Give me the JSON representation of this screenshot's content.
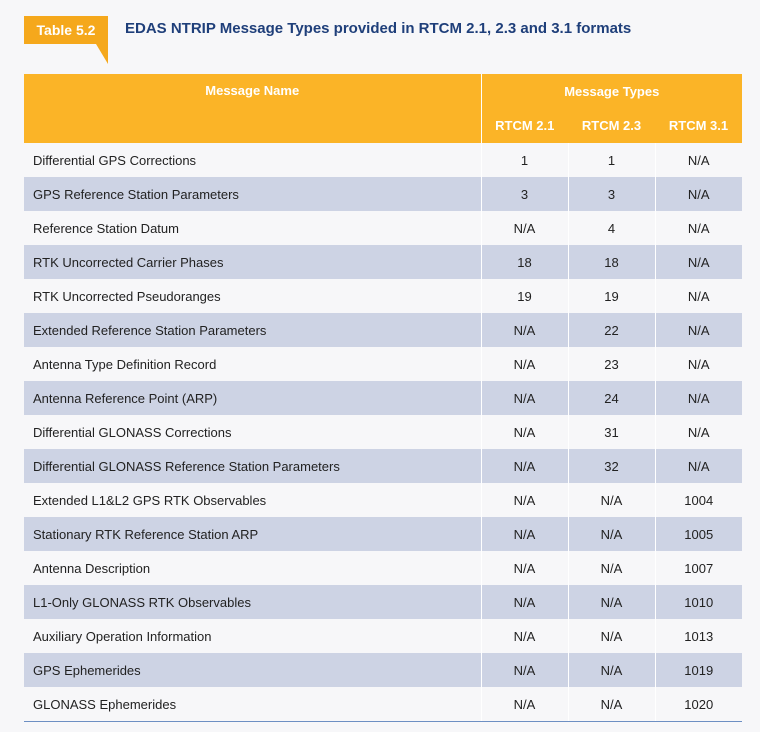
{
  "table_label": "Table 5.2",
  "title": "EDAS NTRIP Message Types provided in RTCM 2.1, 2.3 and 3.1 formats",
  "header": {
    "name": "Message Name",
    "types": "Message Types",
    "versions": [
      "RTCM 2.1",
      "RTCM 2.3",
      "RTCM 3.1"
    ]
  },
  "rows": [
    {
      "name": "Differential GPS Corrections",
      "v21": "1",
      "v23": "1",
      "v31": "N/A"
    },
    {
      "name": "GPS Reference Station Parameters",
      "v21": "3",
      "v23": "3",
      "v31": "N/A"
    },
    {
      "name": "Reference Station Datum",
      "v21": "N/A",
      "v23": "4",
      "v31": "N/A"
    },
    {
      "name": "RTK Uncorrected Carrier Phases",
      "v21": "18",
      "v23": "18",
      "v31": "N/A"
    },
    {
      "name": "RTK Uncorrected Pseudoranges",
      "v21": "19",
      "v23": "19",
      "v31": "N/A"
    },
    {
      "name": "Extended Reference Station Parameters",
      "v21": "N/A",
      "v23": "22",
      "v31": "N/A"
    },
    {
      "name": "Antenna Type Definition Record",
      "v21": "N/A",
      "v23": "23",
      "v31": "N/A"
    },
    {
      "name": "Antenna Reference Point (ARP)",
      "v21": "N/A",
      "v23": "24",
      "v31": "N/A"
    },
    {
      "name": "Differential GLONASS Corrections",
      "v21": "N/A",
      "v23": "31",
      "v31": "N/A"
    },
    {
      "name": "Differential GLONASS Reference Station Parameters",
      "v21": "N/A",
      "v23": "32",
      "v31": "N/A"
    },
    {
      "name": "Extended L1&L2 GPS RTK Observables",
      "v21": "N/A",
      "v23": "N/A",
      "v31": "1004"
    },
    {
      "name": "Stationary RTK Reference Station ARP",
      "v21": "N/A",
      "v23": "N/A",
      "v31": "1005"
    },
    {
      "name": "Antenna Description",
      "v21": "N/A",
      "v23": "N/A",
      "v31": "1007"
    },
    {
      "name": "L1-Only GLONASS RTK Observables",
      "v21": "N/A",
      "v23": "N/A",
      "v31": "1010"
    },
    {
      "name": "Auxiliary Operation Information",
      "v21": "N/A",
      "v23": "N/A",
      "v31": "1013"
    },
    {
      "name": "GPS Ephemerides",
      "v21": "N/A",
      "v23": "N/A",
      "v31": "1019"
    },
    {
      "name": "GLONASS Ephemerides",
      "v21": "N/A",
      "v23": "N/A",
      "v31": "1020"
    }
  ]
}
